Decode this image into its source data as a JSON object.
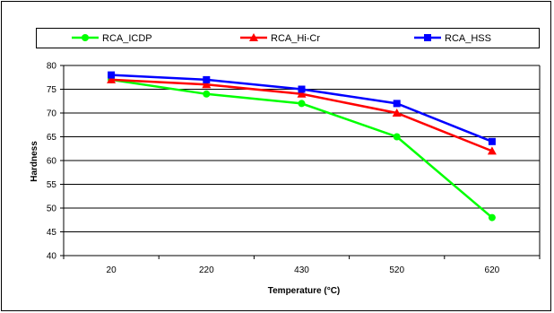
{
  "chart_data": {
    "type": "line",
    "title": "",
    "xlabel": "Temperature (°C)",
    "ylabel": "Hardness",
    "categories": [
      "20",
      "220",
      "430",
      "520",
      "620"
    ],
    "ylim": [
      40,
      80
    ],
    "yticks": [
      40,
      45,
      50,
      55,
      60,
      65,
      70,
      75,
      80
    ],
    "grid": true,
    "legend_position": "top",
    "series": [
      {
        "name": "RCA_ICDP",
        "color": "#00ff00",
        "marker": "circle",
        "values": [
          77,
          74,
          72,
          65,
          48
        ]
      },
      {
        "name": "RCA_Hi-Cr",
        "color": "#ff0000",
        "marker": "triangle",
        "values": [
          77,
          76,
          74,
          70,
          62
        ]
      },
      {
        "name": "RCA_HSS",
        "color": "#0000ff",
        "marker": "square",
        "values": [
          78,
          77,
          75,
          72,
          64
        ]
      }
    ]
  }
}
